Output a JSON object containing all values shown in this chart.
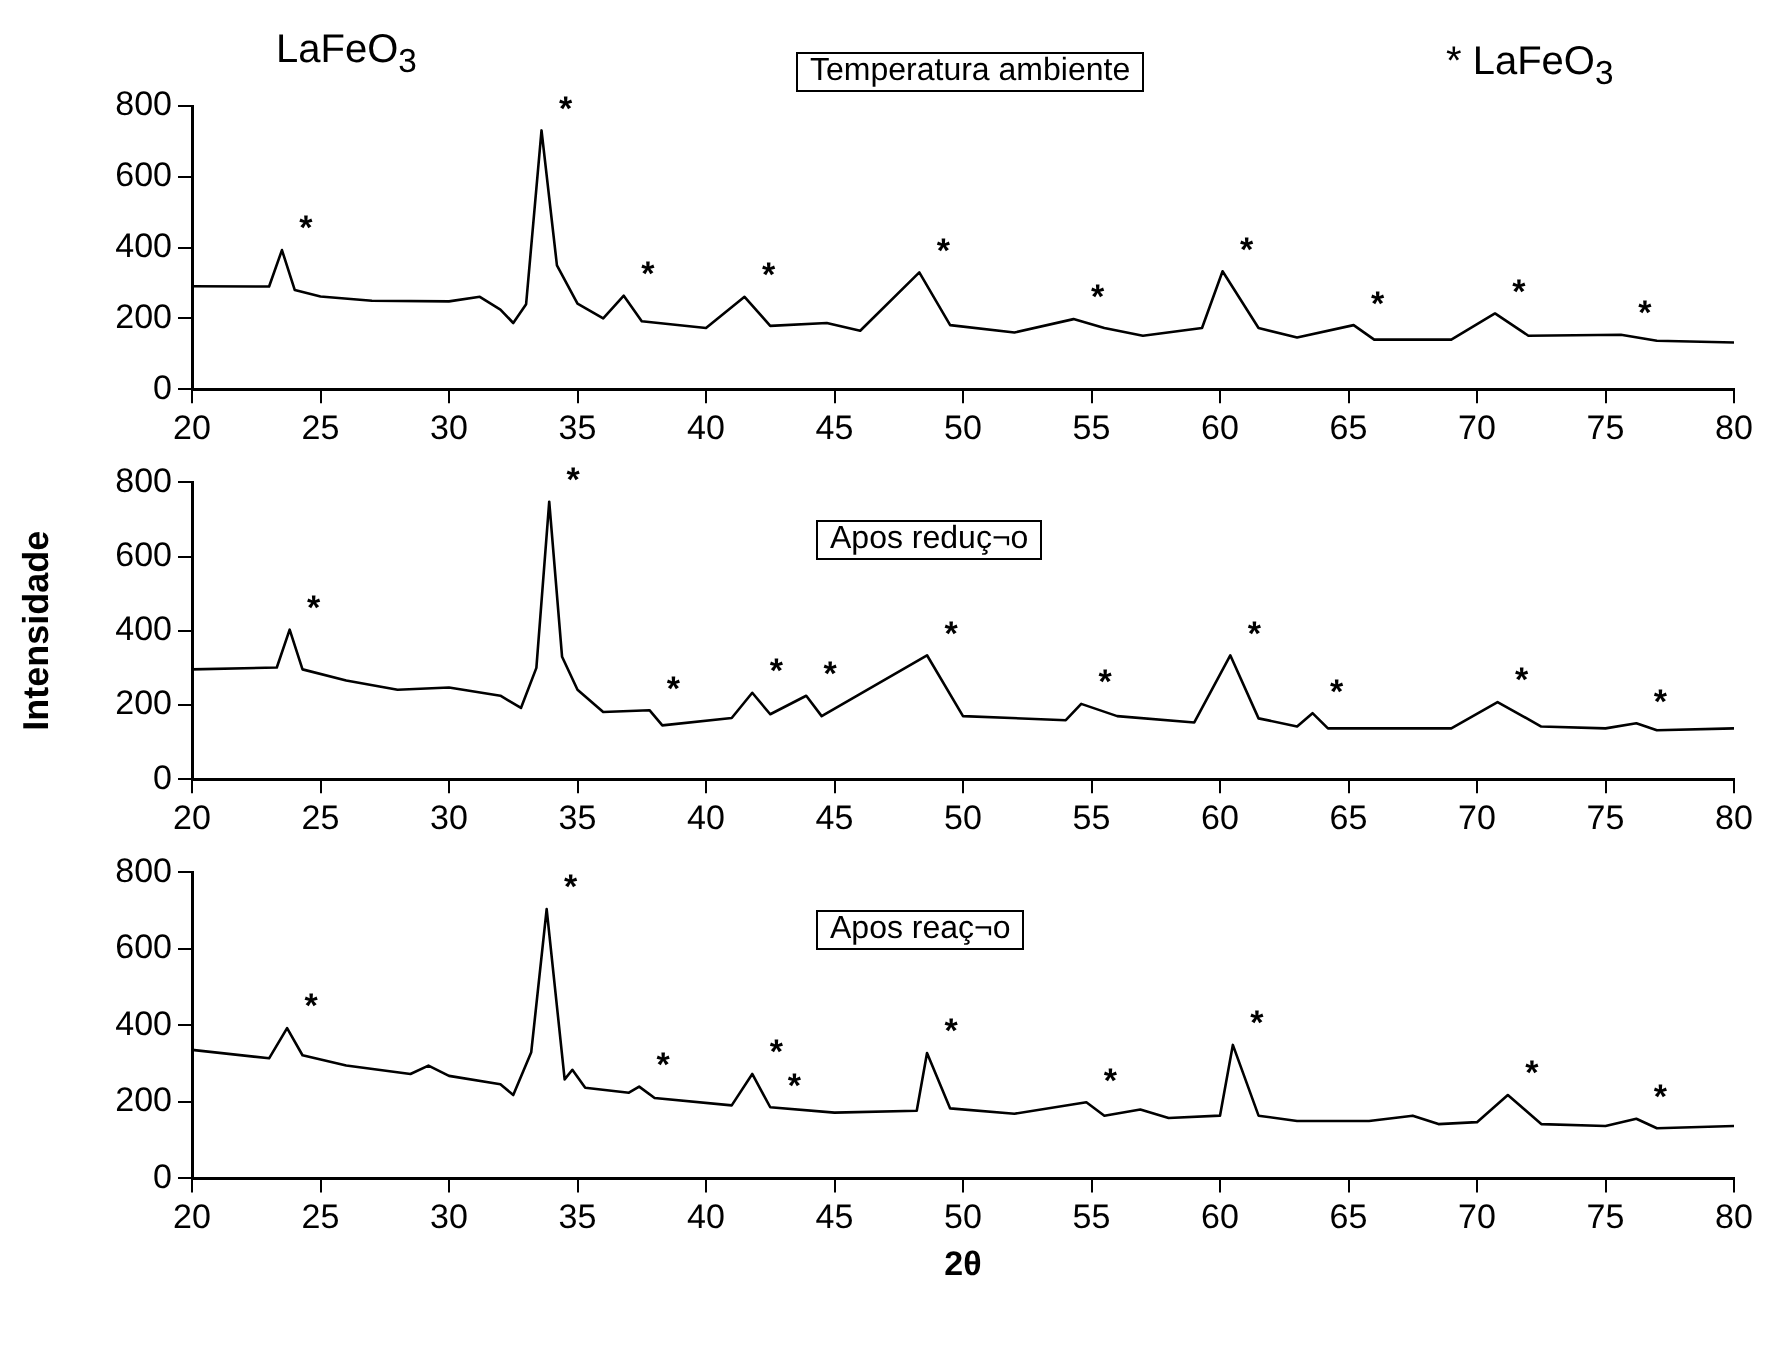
{
  "chart_data": [
    {
      "type": "line",
      "annotations": [
        "LaFeO$_{3}$",
        "Temperatura ambiente",
        "* LaFeO$_{3}$",
        {
          "text": "*",
          "x": 23.5,
          "y": 393
        },
        {
          "text": "*",
          "x": 33.6,
          "y": 731
        },
        {
          "text": "*",
          "x": 36.8,
          "y": 264
        },
        {
          "text": "*",
          "x": 41.5,
          "y": 261
        },
        {
          "text": "*",
          "x": 48.3,
          "y": 330
        },
        {
          "text": "*",
          "x": 54.3,
          "y": 198
        },
        {
          "text": "*",
          "x": 60.1,
          "y": 333
        },
        {
          "text": "*",
          "x": 65.2,
          "y": 181
        },
        {
          "text": "*",
          "x": 70.7,
          "y": 214
        },
        {
          "text": "*",
          "x": 75.6,
          "y": 154
        }
      ],
      "x": [
        20,
        23,
        23.5,
        24,
        25,
        27,
        30,
        31.2,
        32,
        32.5,
        33,
        33.6,
        34.2,
        35,
        36,
        36.8,
        37.5,
        40,
        41.5,
        42.5,
        44.7,
        46,
        48.3,
        49.5,
        52,
        54.3,
        55.5,
        57,
        59.3,
        60.1,
        61.5,
        63,
        65.2,
        66,
        69,
        70.7,
        72,
        75.6,
        77,
        80
      ],
      "series": [
        {
          "color": "#000000",
          "values": [
            291,
            290,
            393,
            280,
            262,
            250,
            248,
            261,
            225,
            187,
            240,
            731,
            350,
            242,
            200,
            264,
            192,
            173,
            261,
            179,
            187,
            165,
            330,
            181,
            160,
            198,
            173,
            151,
            173,
            333,
            173,
            146,
            181,
            140,
            140,
            214,
            151,
            154,
            137,
            132
          ]
        }
      ],
      "xlim": [
        20,
        80
      ],
      "xticks": [
        20,
        25,
        30,
        35,
        40,
        45,
        50,
        55,
        60,
        65,
        70,
        75,
        80
      ],
      "ylim": [
        0,
        800
      ],
      "yticks": [
        0,
        200,
        400,
        600,
        800
      ],
      "grid": false,
      "legend": false,
      "marker": "none"
    },
    {
      "type": "line",
      "ylabel": "Intensidade",
      "annotations": [
        "Apos reduç¬o",
        {
          "text": "*",
          "x": 23.8,
          "y": 403
        },
        {
          "text": "*",
          "x": 33.9,
          "y": 748
        },
        {
          "text": "*",
          "x": 37.8,
          "y": 186
        },
        {
          "text": "*",
          "x": 41.8,
          "y": 233
        },
        {
          "text": "*",
          "x": 43.9,
          "y": 225
        },
        {
          "text": "*",
          "x": 48.6,
          "y": 334
        },
        {
          "text": "*",
          "x": 54.6,
          "y": 203
        },
        {
          "text": "*",
          "x": 60.4,
          "y": 334
        },
        {
          "text": "*",
          "x": 63.6,
          "y": 178
        },
        {
          "text": "*",
          "x": 70.8,
          "y": 208
        },
        {
          "text": "*",
          "x": 76.2,
          "y": 151
        }
      ],
      "x": [
        20,
        23.3,
        23.8,
        24.3,
        26,
        28,
        30,
        32,
        32.8,
        33.4,
        33.9,
        34.4,
        35,
        36,
        37.8,
        38.3,
        41,
        41.8,
        42.5,
        43.9,
        44.5,
        48.6,
        50,
        54,
        54.6,
        56,
        59,
        60.4,
        61.5,
        63,
        63.6,
        64.2,
        69,
        70.8,
        72.5,
        75,
        76.2,
        77,
        80
      ],
      "series": [
        {
          "color": "#000000",
          "values": [
            296,
            301,
            403,
            296,
            266,
            241,
            247,
            225,
            192,
            300,
            748,
            330,
            241,
            181,
            186,
            145,
            165,
            233,
            175,
            225,
            170,
            334,
            170,
            159,
            203,
            170,
            153,
            334,
            164,
            142,
            178,
            137,
            137,
            208,
            142,
            137,
            151,
            132,
            137
          ]
        }
      ],
      "xlim": [
        20,
        80
      ],
      "xticks": [
        20,
        25,
        30,
        35,
        40,
        45,
        50,
        55,
        60,
        65,
        70,
        75,
        80
      ],
      "ylim": [
        0,
        800
      ],
      "yticks": [
        0,
        200,
        400,
        600,
        800
      ],
      "grid": false,
      "legend": false,
      "marker": "none"
    },
    {
      "type": "line",
      "xlabel": "2θ",
      "annotations": [
        "Apos reaç¬o",
        {
          "text": "*",
          "x": 23.7,
          "y": 393
        },
        {
          "text": "*",
          "x": 33.8,
          "y": 704
        },
        {
          "text": "*",
          "x": 37.4,
          "y": 240
        },
        {
          "text": "*",
          "x": 41.8,
          "y": 273
        },
        {
          "text": "*",
          "x": 42.5,
          "y": 186
        },
        {
          "text": "*",
          "x": 48.6,
          "y": 328
        },
        {
          "text": "*",
          "x": 54.8,
          "y": 199
        },
        {
          "text": "*",
          "x": 60.5,
          "y": 349
        },
        {
          "text": "*",
          "x": 71.2,
          "y": 218
        },
        {
          "text": "*",
          "x": 76.2,
          "y": 156
        }
      ],
      "x": [
        20,
        23,
        23.7,
        24.3,
        26,
        28.5,
        29.2,
        30,
        32,
        32.5,
        33.2,
        33.8,
        34.5,
        34.8,
        35.3,
        37,
        37.4,
        38,
        41,
        41.8,
        42.5,
        45,
        48.2,
        48.6,
        49.5,
        52,
        54.8,
        55.5,
        56.9,
        58,
        60,
        60.5,
        61.5,
        63,
        65.8,
        67.5,
        68.5,
        70,
        71.2,
        72.5,
        75,
        76.2,
        77,
        80
      ],
      "series": [
        {
          "color": "#000000",
          "values": [
            336,
            314,
            393,
            322,
            295,
            273,
            295,
            268,
            246,
            218,
            330,
            704,
            259,
            284,
            237,
            224,
            240,
            210,
            191,
            273,
            186,
            172,
            177,
            328,
            183,
            169,
            199,
            164,
            180,
            158,
            164,
            349,
            164,
            150,
            150,
            164,
            142,
            147,
            218,
            142,
            137,
            156,
            131,
            137
          ]
        }
      ],
      "xlim": [
        20,
        80
      ],
      "xticks": [
        20,
        25,
        30,
        35,
        40,
        45,
        50,
        55,
        60,
        65,
        70,
        75,
        80
      ],
      "ylim": [
        0,
        800
      ],
      "yticks": [
        0,
        200,
        400,
        600,
        800
      ],
      "grid": false,
      "legend": false,
      "marker": "none"
    }
  ]
}
